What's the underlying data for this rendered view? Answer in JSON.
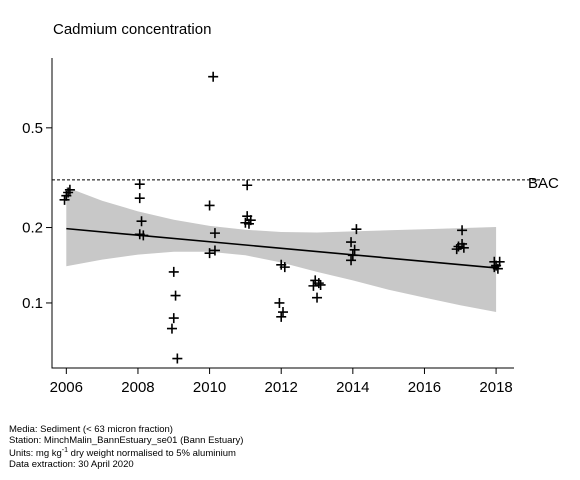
{
  "chart_data": {
    "type": "scatter",
    "title": "Cadmium concentration",
    "xlabel": "",
    "ylabel": "",
    "x_scale": "linear",
    "y_scale": "log",
    "xlim": [
      2005.6,
      2018.5
    ],
    "ylim": [
      0.055,
      0.95
    ],
    "x_ticks": [
      2006,
      2008,
      2010,
      2012,
      2014,
      2016,
      2018
    ],
    "y_ticks": [
      0.1,
      0.2,
      0.5
    ],
    "y_tick_labels": [
      "0.1",
      "0.2",
      "0.5"
    ],
    "grid": false,
    "reference_line": {
      "label": "BAC",
      "value": 0.31,
      "style": "dashed"
    },
    "trend": {
      "x": [
        2006,
        2018
      ],
      "y": [
        0.198,
        0.138
      ]
    },
    "confidence_band": {
      "x": [
        2006,
        2007,
        2008,
        2009,
        2010,
        2011,
        2012,
        2013,
        2014,
        2015,
        2016,
        2017,
        2018
      ],
      "lower": [
        0.14,
        0.149,
        0.156,
        0.16,
        0.16,
        0.155,
        0.145,
        0.133,
        0.123,
        0.113,
        0.105,
        0.098,
        0.092
      ],
      "upper": [
        0.29,
        0.256,
        0.232,
        0.215,
        0.203,
        0.196,
        0.192,
        0.191,
        0.193,
        0.195,
        0.197,
        0.199,
        0.201
      ]
    },
    "points": [
      {
        "x": 2005.95,
        "y": 0.258
      },
      {
        "x": 2006.0,
        "y": 0.268
      },
      {
        "x": 2006.05,
        "y": 0.276
      },
      {
        "x": 2006.1,
        "y": 0.283
      },
      {
        "x": 2008.05,
        "y": 0.298
      },
      {
        "x": 2008.05,
        "y": 0.262
      },
      {
        "x": 2008.1,
        "y": 0.212
      },
      {
        "x": 2008.05,
        "y": 0.188
      },
      {
        "x": 2008.15,
        "y": 0.186
      },
      {
        "x": 2009.0,
        "y": 0.133
      },
      {
        "x": 2009.05,
        "y": 0.107
      },
      {
        "x": 2009.0,
        "y": 0.087
      },
      {
        "x": 2008.95,
        "y": 0.079
      },
      {
        "x": 2009.1,
        "y": 0.06
      },
      {
        "x": 2010.0,
        "y": 0.245
      },
      {
        "x": 2010.15,
        "y": 0.19
      },
      {
        "x": 2010.15,
        "y": 0.162
      },
      {
        "x": 2010.0,
        "y": 0.158
      },
      {
        "x": 2010.1,
        "y": 0.8
      },
      {
        "x": 2011.05,
        "y": 0.295
      },
      {
        "x": 2011.05,
        "y": 0.222
      },
      {
        "x": 2011.15,
        "y": 0.214
      },
      {
        "x": 2011.0,
        "y": 0.209
      },
      {
        "x": 2011.1,
        "y": 0.207
      },
      {
        "x": 2012.0,
        "y": 0.142
      },
      {
        "x": 2012.1,
        "y": 0.139
      },
      {
        "x": 2011.95,
        "y": 0.1
      },
      {
        "x": 2012.05,
        "y": 0.092
      },
      {
        "x": 2012.0,
        "y": 0.088
      },
      {
        "x": 2012.95,
        "y": 0.123
      },
      {
        "x": 2013.05,
        "y": 0.12
      },
      {
        "x": 2013.1,
        "y": 0.118
      },
      {
        "x": 2012.9,
        "y": 0.117
      },
      {
        "x": 2013.0,
        "y": 0.105
      },
      {
        "x": 2014.1,
        "y": 0.197
      },
      {
        "x": 2013.95,
        "y": 0.175
      },
      {
        "x": 2014.05,
        "y": 0.163
      },
      {
        "x": 2014.0,
        "y": 0.155
      },
      {
        "x": 2013.95,
        "y": 0.148
      },
      {
        "x": 2017.05,
        "y": 0.195
      },
      {
        "x": 2017.05,
        "y": 0.172
      },
      {
        "x": 2016.95,
        "y": 0.168
      },
      {
        "x": 2017.1,
        "y": 0.166
      },
      {
        "x": 2016.9,
        "y": 0.164
      },
      {
        "x": 2017.95,
        "y": 0.146
      },
      {
        "x": 2018.1,
        "y": 0.146
      },
      {
        "x": 2018.0,
        "y": 0.141
      },
      {
        "x": 2017.95,
        "y": 0.139
      },
      {
        "x": 2018.05,
        "y": 0.137
      }
    ]
  },
  "footer": {
    "media": "Media: Sediment (< 63 micron fraction)",
    "station": "Station: MinchMalin_BannEstuary_se01 (Bann Estuary)",
    "units_prefix": "Units:  mg kg",
    "units_exponent": "-1",
    "units_suffix": " dry weight normalised to 5% aluminium",
    "extraction": "Data extraction: 30 April 2020"
  }
}
